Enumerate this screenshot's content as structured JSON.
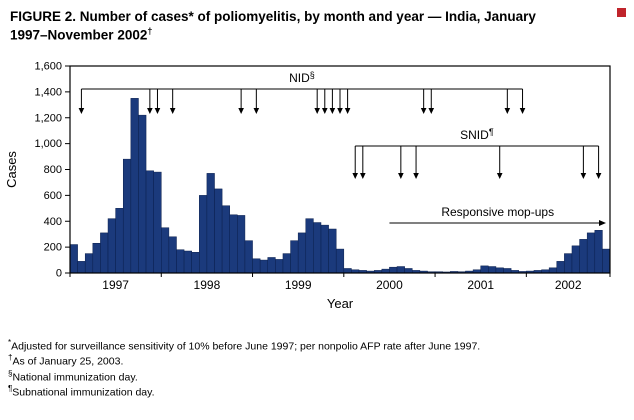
{
  "title": {
    "main": "FIGURE 2. Number of cases* of poliomyelitis, by month and year — India, January 1997–November 2002",
    "sup": "†"
  },
  "chart_data": {
    "type": "bar",
    "title": "Number of cases of poliomyelitis, by month and year, India, January 1997 - November 2002",
    "xlabel": "Year",
    "ylabel": "Cases",
    "ylim": [
      0,
      1600
    ],
    "ytick_step": 200,
    "ytick_labels": [
      "0",
      "200",
      "400",
      "600",
      "800",
      "1,000",
      "1,200",
      "1,400",
      "1,600"
    ],
    "grid": false,
    "legend": "none",
    "bar_color": "#1b3a7c",
    "bar_edge_color": "#0a1f4d",
    "years": [
      {
        "year": "1997",
        "values": [
          220,
          90,
          150,
          230,
          310,
          420,
          500,
          880,
          1350,
          1220,
          790,
          780
        ]
      },
      {
        "year": "1998",
        "values": [
          350,
          280,
          180,
          170,
          160,
          600,
          770,
          650,
          520,
          450,
          445,
          250
        ]
      },
      {
        "year": "1999",
        "values": [
          110,
          100,
          120,
          105,
          150,
          250,
          310,
          420,
          390,
          370,
          340,
          185
        ]
      },
      {
        "year": "2000",
        "values": [
          35,
          25,
          20,
          15,
          20,
          30,
          45,
          50,
          35,
          20,
          15,
          10
        ]
      },
      {
        "year": "2001",
        "values": [
          10,
          8,
          12,
          10,
          15,
          25,
          55,
          50,
          40,
          35,
          20,
          12
        ]
      },
      {
        "year": "2002",
        "values": [
          15,
          20,
          25,
          40,
          90,
          150,
          210,
          260,
          310,
          330,
          185
        ]
      }
    ],
    "annotations": {
      "nid": {
        "label": "NID",
        "sup": "§",
        "arrow_month_indices": [
          1,
          10,
          11,
          13,
          22,
          24,
          32,
          33,
          34,
          35,
          36,
          46,
          47,
          57,
          59
        ]
      },
      "snid": {
        "label": "SNID",
        "sup": "¶",
        "arrow_month_indices": [
          37,
          38,
          43,
          45,
          56,
          67,
          69
        ]
      },
      "mopup": {
        "label": "Responsive mop-ups",
        "start_month_index": 42,
        "end_month_index": 71
      }
    }
  },
  "footnotes": [
    {
      "marker": "*",
      "text": "Adjusted for surveillance sensitivity of 10% before June 1997; per nonpolio AFP rate after June 1997."
    },
    {
      "marker": "†",
      "text": "As of January 25, 2003."
    },
    {
      "marker": "§",
      "text": "National immunization day."
    },
    {
      "marker": "¶",
      "text": "Subnational immunization day."
    }
  ]
}
